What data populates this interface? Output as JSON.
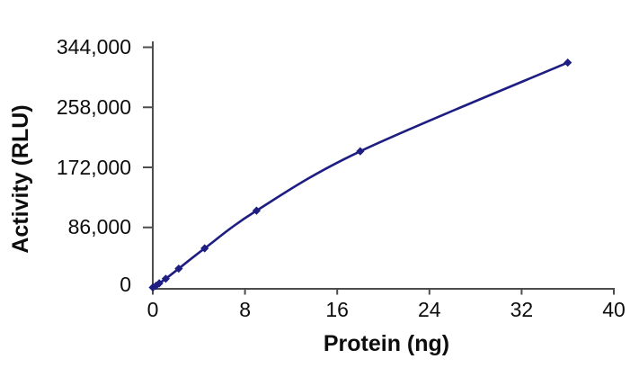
{
  "figure": {
    "background_color": "#ffffff",
    "axis_color": "#4d4d4d",
    "text_color": "#0d0d0d"
  },
  "chart_data": {
    "type": "line",
    "title": "",
    "xlabel": "Protein (ng)",
    "ylabel": "Activity (RLU)",
    "series": [
      {
        "name": "Activity",
        "x": [
          0,
          0.28,
          0.56,
          1.125,
          2.25,
          4.5,
          9,
          18,
          36
        ],
        "y": [
          0,
          2500,
          6000,
          12500,
          27000,
          56000,
          110000,
          195000,
          322000
        ],
        "line_color": "#1e1e82",
        "marker": "diamond",
        "smooth": true
      }
    ],
    "xlim": [
      0,
      40
    ],
    "ylim": [
      0,
      344000
    ],
    "x_ticks": [
      0,
      8,
      16,
      24,
      32,
      40
    ],
    "x_tick_labels": [
      "0",
      "8",
      "16",
      "24",
      "32",
      "40"
    ],
    "y_ticks": [
      86000,
      172000,
      258000,
      344000
    ],
    "y_tick_labels": [
      "86,000",
      "172,000",
      "258,000",
      "344,000"
    ],
    "y_zero_tick_label": "0",
    "grid": false,
    "legend": "none"
  }
}
